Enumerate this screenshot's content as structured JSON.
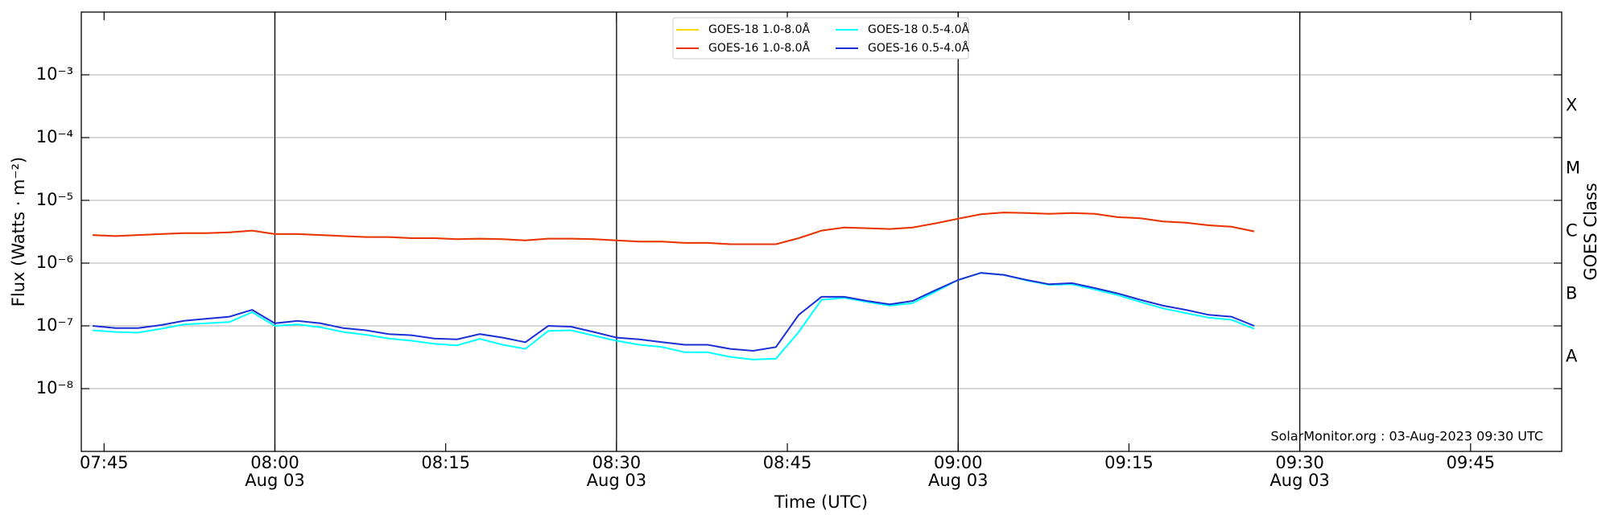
{
  "chart_data": {
    "type": "line",
    "ylabel": "Flux (Watts · m⁻²)",
    "y2label": "GOES Class",
    "xlabel": "Time (UTC)",
    "annotation": "SolarMonitor.org : 03-Aug-2023 09:30 UTC",
    "log_y": true,
    "grid": true,
    "legend": "upper center",
    "xlim": [
      "07:43",
      "09:53"
    ],
    "xticks": [
      "07:45",
      {
        "value": "08:00",
        "label": "08:00",
        "date": "Aug 03"
      },
      "08:15",
      {
        "value": "08:30",
        "label": "08:30",
        "date": "Aug 03"
      },
      "08:45",
      {
        "value": "09:00",
        "label": "09:00",
        "date": "Aug 03"
      },
      "09:15",
      {
        "value": "09:30",
        "label": "09:30",
        "date": "Aug 03"
      },
      "09:45"
    ],
    "ylim": [
      1e-09,
      0.01
    ],
    "yticks": [
      {
        "value": 1e-08,
        "label": "10⁻⁸"
      },
      {
        "value": 1e-07,
        "label": "10⁻⁷"
      },
      {
        "value": 1e-06,
        "label": "10⁻⁶"
      },
      {
        "value": 1e-05,
        "label": "10⁻⁵"
      },
      {
        "value": 0.0001,
        "label": "10⁻⁴"
      },
      {
        "value": 0.001,
        "label": "10⁻³"
      }
    ],
    "y2lim": [
      1e-09,
      0.01
    ],
    "y2ticks": [
      {
        "value": 3.2e-08,
        "label": "A"
      },
      {
        "value": 3.2e-07,
        "label": "B"
      },
      {
        "value": 3.2e-06,
        "label": "C"
      },
      {
        "value": 3.2e-05,
        "label": "M"
      },
      {
        "value": 0.00032,
        "label": "X"
      }
    ],
    "x": [
      "07:44",
      "07:46",
      "07:48",
      "07:50",
      "07:52",
      "07:54",
      "07:56",
      "07:58",
      "08:00",
      "08:02",
      "08:04",
      "08:06",
      "08:08",
      "08:10",
      "08:12",
      "08:14",
      "08:16",
      "08:18",
      "08:20",
      "08:22",
      "08:24",
      "08:26",
      "08:28",
      "08:30",
      "08:32",
      "08:34",
      "08:36",
      "08:38",
      "08:40",
      "08:42",
      "08:44",
      "08:46",
      "08:48",
      "08:50",
      "08:52",
      "08:54",
      "08:56",
      "08:58",
      "09:00",
      "09:02",
      "09:04",
      "09:06",
      "09:08",
      "09:10",
      "09:12",
      "09:14",
      "09:16",
      "09:18",
      "09:20",
      "09:22",
      "09:24",
      "09:26"
    ],
    "series": [
      {
        "name": "GOES-18 1.0-8.0Å",
        "color": "#ffd700",
        "values": [
          2.8e-06,
          2.7e-06,
          2.8e-06,
          2.9e-06,
          3e-06,
          3e-06,
          3.1e-06,
          3.3e-06,
          2.9e-06,
          2.9e-06,
          2.8e-06,
          2.7e-06,
          2.6e-06,
          2.6e-06,
          2.5e-06,
          2.5e-06,
          2.4e-06,
          2.45e-06,
          2.4e-06,
          2.3e-06,
          2.45e-06,
          2.45e-06,
          2.4e-06,
          2.3e-06,
          2.2e-06,
          2.2e-06,
          2.1e-06,
          2.1e-06,
          2e-06,
          2e-06,
          2e-06,
          2.5e-06,
          3.3e-06,
          3.7e-06,
          3.6e-06,
          3.5e-06,
          3.7e-06,
          4.3e-06,
          5.1e-06,
          6e-06,
          6.4e-06,
          6.3e-06,
          6.1e-06,
          6.3e-06,
          6.1e-06,
          5.4e-06,
          5.2e-06,
          4.6e-06,
          4.4e-06,
          4e-06,
          3.8e-06,
          3.2e-06
        ]
      },
      {
        "name": "GOES-16 1.0-8.0Å",
        "color": "#e8320c",
        "values": [
          2.8e-06,
          2.7e-06,
          2.8e-06,
          2.9e-06,
          3e-06,
          3e-06,
          3.1e-06,
          3.3e-06,
          2.9e-06,
          2.9e-06,
          2.8e-06,
          2.7e-06,
          2.6e-06,
          2.6e-06,
          2.5e-06,
          2.5e-06,
          2.4e-06,
          2.45e-06,
          2.4e-06,
          2.3e-06,
          2.45e-06,
          2.45e-06,
          2.4e-06,
          2.3e-06,
          2.2e-06,
          2.2e-06,
          2.1e-06,
          2.1e-06,
          2e-06,
          2e-06,
          2e-06,
          2.5e-06,
          3.3e-06,
          3.7e-06,
          3.6e-06,
          3.5e-06,
          3.7e-06,
          4.3e-06,
          5.1e-06,
          6e-06,
          6.4e-06,
          6.3e-06,
          6.1e-06,
          6.3e-06,
          6.1e-06,
          5.4e-06,
          5.2e-06,
          4.6e-06,
          4.4e-06,
          4e-06,
          3.8e-06,
          3.2e-06
        ]
      },
      {
        "name": "GOES-18 0.5-4.0Å",
        "color": "#00ffff",
        "values": [
          8.5e-08,
          8e-08,
          7.8e-08,
          9e-08,
          1.05e-07,
          1.1e-07,
          1.15e-07,
          1.65e-07,
          1e-07,
          1.05e-07,
          9.5e-08,
          8e-08,
          7.2e-08,
          6.3e-08,
          5.8e-08,
          5.2e-08,
          4.9e-08,
          6.2e-08,
          5e-08,
          4.3e-08,
          8.3e-08,
          8.5e-08,
          7e-08,
          5.8e-08,
          5e-08,
          4.6e-08,
          3.8e-08,
          3.8e-08,
          3.2e-08,
          2.9e-08,
          3e-08,
          8e-08,
          2.6e-07,
          2.8e-07,
          2.4e-07,
          2.1e-07,
          2.3e-07,
          3.5e-07,
          5.4e-07,
          7e-07,
          6.5e-07,
          5.3e-07,
          4.5e-07,
          4.6e-07,
          3.8e-07,
          3.1e-07,
          2.4e-07,
          1.9e-07,
          1.6e-07,
          1.35e-07,
          1.25e-07,
          9e-08
        ]
      },
      {
        "name": "GOES-16 0.5-4.0Å",
        "color": "#1a2fd6",
        "values": [
          1e-07,
          9.2e-08,
          9.2e-08,
          1.03e-07,
          1.2e-07,
          1.3e-07,
          1.4e-07,
          1.8e-07,
          1.1e-07,
          1.2e-07,
          1.1e-07,
          9.2e-08,
          8.5e-08,
          7.4e-08,
          7.1e-08,
          6.3e-08,
          6.1e-08,
          7.4e-08,
          6.5e-08,
          5.5e-08,
          1e-07,
          9.7e-08,
          8e-08,
          6.5e-08,
          6.1e-08,
          5.5e-08,
          5e-08,
          5e-08,
          4.3e-08,
          4e-08,
          4.6e-08,
          1.5e-07,
          2.9e-07,
          2.9e-07,
          2.5e-07,
          2.2e-07,
          2.5e-07,
          3.7e-07,
          5.4e-07,
          7e-07,
          6.5e-07,
          5.4e-07,
          4.6e-07,
          4.8e-07,
          4e-07,
          3.3e-07,
          2.6e-07,
          2.1e-07,
          1.8e-07,
          1.5e-07,
          1.4e-07,
          1e-07
        ]
      }
    ]
  }
}
